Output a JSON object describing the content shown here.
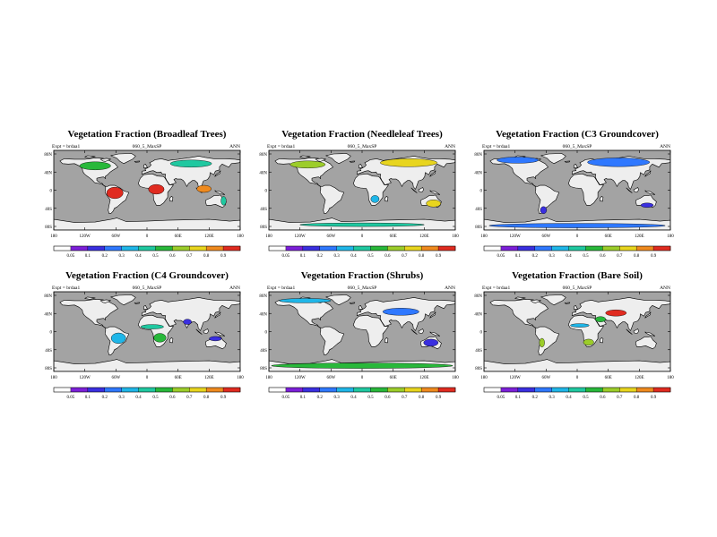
{
  "figure": {
    "colorbar_levels": [
      "0.05",
      "0.1",
      "0.2",
      "0.3",
      "0.4",
      "0.5",
      "0.6",
      "0.7",
      "0.8",
      "0.9"
    ],
    "colorbar_colors": [
      "#ffffff",
      "#7c1fd8",
      "#3a2fe0",
      "#2f78ff",
      "#1fb6e8",
      "#1fc8a0",
      "#28b83a",
      "#9ccd2a",
      "#e8d51e",
      "#ef8a1e",
      "#e02b20"
    ],
    "ocean_color": "#a3a3a3",
    "land_color": "#eeeeee"
  },
  "chart_data": [
    {
      "type": "heatmap",
      "title": "Vegetation Fraction (Broadleaf Trees)",
      "subtitle": "060_5_MaxSP",
      "left_label": "Expt = brdaa1",
      "right_label": "ANN",
      "x_ticks": [
        "180",
        "120W",
        "60W",
        "0",
        "60E",
        "120E",
        "180"
      ],
      "y_ticks": [
        "80N",
        "40N",
        "0",
        "40S",
        "80S"
      ],
      "lon_range": [
        -180,
        180
      ],
      "lat_range": [
        -90,
        90
      ],
      "colorbar_labels": [
        "0.05",
        "0.1",
        "0.2",
        "0.3",
        "0.4",
        "0.5",
        "0.6",
        "0.7",
        "0.8",
        "0.9"
      ],
      "patches": [
        {
          "region": "Amazon",
          "value": 0.9
        },
        {
          "region": "Central Africa",
          "value": 0.9
        },
        {
          "region": "Southeast Asia",
          "value": 0.85
        },
        {
          "region": "Boreal North America",
          "value": 0.5
        },
        {
          "region": "Boreal Eurasia",
          "value": 0.4
        },
        {
          "region": "Eastern Australia",
          "value": 0.4
        }
      ]
    },
    {
      "type": "heatmap",
      "title": "Vegetation Fraction (Needleleaf Trees)",
      "subtitle": "060_5_MaxSP",
      "left_label": "Expt = brdaa1",
      "right_label": "ANN",
      "x_ticks": [
        "180",
        "120W",
        "60W",
        "0",
        "60E",
        "120E",
        "180"
      ],
      "y_ticks": [
        "80N",
        "40N",
        "0",
        "40S",
        "80S"
      ],
      "lon_range": [
        -180,
        180
      ],
      "lat_range": [
        -90,
        90
      ],
      "colorbar_labels": [
        "0.05",
        "0.1",
        "0.2",
        "0.3",
        "0.4",
        "0.5",
        "0.6",
        "0.7",
        "0.8",
        "0.9"
      ],
      "patches": [
        {
          "region": "Boreal North America",
          "value": 0.6
        },
        {
          "region": "Boreal Eurasia",
          "value": 0.7
        },
        {
          "region": "Southern Australia",
          "value": 0.7
        },
        {
          "region": "Antarctic rim",
          "value": 0.4
        },
        {
          "region": "Southern Africa",
          "value": 0.3
        }
      ]
    },
    {
      "type": "heatmap",
      "title": "Vegetation Fraction (C3 Groundcover)",
      "subtitle": "060_5_MaxSP",
      "left_label": "Expt = brdaa1",
      "right_label": "ANN",
      "x_ticks": [
        "180",
        "120W",
        "60W",
        "0",
        "60E",
        "120E",
        "180"
      ],
      "y_ticks": [
        "80N",
        "40N",
        "0",
        "40S",
        "80S"
      ],
      "lon_range": [
        -180,
        180
      ],
      "lat_range": [
        -90,
        90
      ],
      "colorbar_labels": [
        "0.05",
        "0.1",
        "0.2",
        "0.3",
        "0.4",
        "0.5",
        "0.6",
        "0.7",
        "0.8",
        "0.9"
      ],
      "patches": [
        {
          "region": "Arctic North America",
          "value": 0.2
        },
        {
          "region": "Northern Eurasia",
          "value": 0.2
        },
        {
          "region": "Antarctica coast",
          "value": 0.2
        },
        {
          "region": "Southern South America",
          "value": 0.1
        },
        {
          "region": "Southern Australia",
          "value": 0.15
        }
      ]
    },
    {
      "type": "heatmap",
      "title": "Vegetation Fraction (C4 Groundcover)",
      "subtitle": "060_5_MaxSP",
      "left_label": "Expt = brdaa1",
      "right_label": "ANN",
      "x_ticks": [
        "180",
        "120W",
        "60W",
        "0",
        "60E",
        "120E",
        "180"
      ],
      "y_ticks": [
        "80N",
        "40N",
        "0",
        "40S",
        "80S"
      ],
      "lon_range": [
        -180,
        180
      ],
      "lat_range": [
        -90,
        90
      ],
      "colorbar_labels": [
        "0.05",
        "0.1",
        "0.2",
        "0.3",
        "0.4",
        "0.5",
        "0.6",
        "0.7",
        "0.8",
        "0.9"
      ],
      "patches": [
        {
          "region": "Sahel",
          "value": 0.4
        },
        {
          "region": "Southern Africa",
          "value": 0.5
        },
        {
          "region": "South America",
          "value": 0.3
        },
        {
          "region": "India",
          "value": 0.1
        },
        {
          "region": "Northern Australia",
          "value": 0.1
        }
      ]
    },
    {
      "type": "heatmap",
      "title": "Vegetation Fraction (Shrubs)",
      "subtitle": "060_5_MaxSP",
      "left_label": "Expt = brdaa1",
      "right_label": "ANN",
      "x_ticks": [
        "180",
        "120W",
        "60W",
        "0",
        "60E",
        "120E",
        "180"
      ],
      "y_ticks": [
        "80N",
        "40N",
        "0",
        "40S",
        "80S"
      ],
      "lon_range": [
        -180,
        180
      ],
      "lat_range": [
        -90,
        90
      ],
      "colorbar_labels": [
        "0.05",
        "0.1",
        "0.2",
        "0.3",
        "0.4",
        "0.5",
        "0.6",
        "0.7",
        "0.8",
        "0.9"
      ],
      "patches": [
        {
          "region": "Arctic tundra",
          "value": 0.3
        },
        {
          "region": "Central Asia",
          "value": 0.2
        },
        {
          "region": "Antarctica coast",
          "value": 0.5
        },
        {
          "region": "Australia",
          "value": 0.1
        }
      ]
    },
    {
      "type": "heatmap",
      "title": "Vegetation Fraction (Bare Soil)",
      "subtitle": "060_5_MaxSP",
      "left_label": "Expt = brdaa1",
      "right_label": "ANN",
      "x_ticks": [
        "180",
        "120W",
        "60W",
        "0",
        "60E",
        "120E",
        "180"
      ],
      "y_ticks": [
        "80N",
        "40N",
        "0",
        "40S",
        "80S"
      ],
      "lon_range": [
        -180,
        180
      ],
      "lat_range": [
        -90,
        90
      ],
      "colorbar_labels": [
        "0.05",
        "0.1",
        "0.2",
        "0.3",
        "0.4",
        "0.5",
        "0.6",
        "0.7",
        "0.8",
        "0.9"
      ],
      "patches": [
        {
          "region": "Central Asia",
          "value": 0.9
        },
        {
          "region": "Middle East",
          "value": 0.5
        },
        {
          "region": "Southern Africa",
          "value": 0.6
        },
        {
          "region": "Andes",
          "value": 0.6
        },
        {
          "region": "Sahel edge",
          "value": 0.3
        }
      ]
    }
  ]
}
